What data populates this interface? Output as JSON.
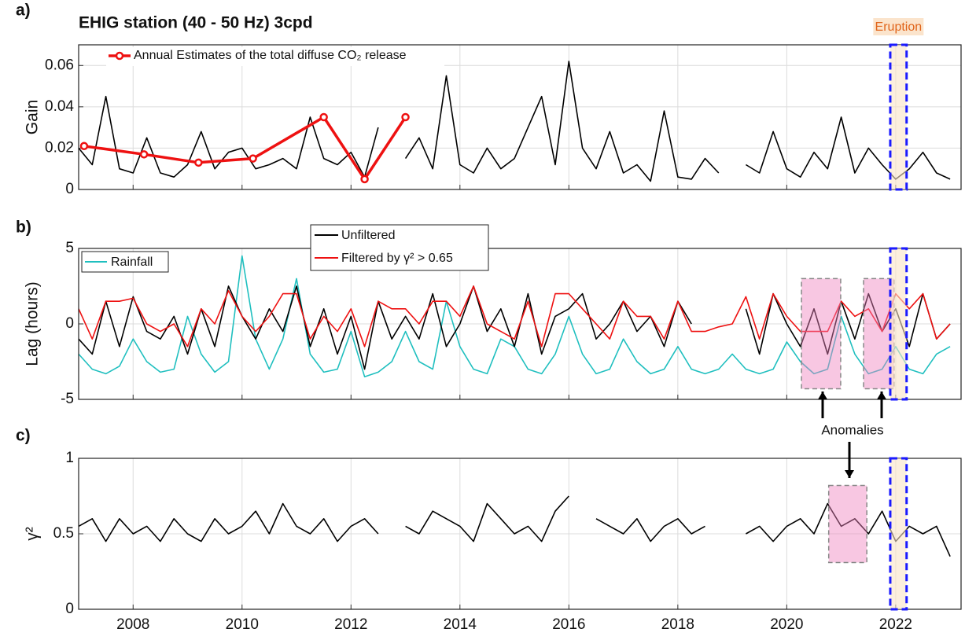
{
  "chart_data": [
    {
      "type": "line",
      "panel_label": "a)",
      "title": "EHIG station (40 - 50 Hz) 3cpd",
      "ylabel": "Gain",
      "xlim": [
        2007,
        2023.2
      ],
      "xticks": [
        2008,
        2010,
        2012,
        2014,
        2016,
        2018,
        2020,
        2022
      ],
      "xtick_labels": false,
      "ylim": [
        0,
        0.07
      ],
      "yticks": [
        0,
        0.02,
        0.04,
        0.06
      ],
      "grid": true,
      "x": [
        2007,
        2007.25,
        2007.5,
        2007.75,
        2008,
        2008.25,
        2008.5,
        2008.75,
        2009,
        2009.25,
        2009.5,
        2009.75,
        2010,
        2010.25,
        2010.5,
        2010.75,
        2011,
        2011.25,
        2011.5,
        2011.75,
        2012,
        2012.25,
        2012.5,
        2012.75,
        2013,
        2013.25,
        2013.5,
        2013.75,
        2014,
        2014.25,
        2014.5,
        2014.75,
        2015,
        2015.25,
        2015.5,
        2015.75,
        2016,
        2016.25,
        2016.5,
        2016.75,
        2017,
        2017.25,
        2017.5,
        2017.75,
        2018,
        2018.25,
        2018.5,
        2018.75,
        2019,
        2019.25,
        2019.5,
        2019.75,
        2020,
        2020.25,
        2020.5,
        2020.75,
        2021,
        2021.25,
        2021.5,
        2021.75,
        2022,
        2022.25,
        2022.5,
        2022.75,
        2023
      ],
      "series": [
        {
          "color": "#000000",
          "values": [
            0.02,
            0.012,
            0.045,
            0.01,
            0.008,
            0.025,
            0.008,
            0.006,
            0.012,
            0.028,
            0.01,
            0.018,
            0.02,
            0.01,
            0.012,
            0.015,
            0.01,
            0.035,
            0.015,
            0.012,
            0.018,
            0.006,
            0.03,
            null,
            0.015,
            0.025,
            0.01,
            0.055,
            0.012,
            0.008,
            0.02,
            0.01,
            0.015,
            0.03,
            0.045,
            0.012,
            0.062,
            0.02,
            0.01,
            0.028,
            0.008,
            0.012,
            0.004,
            0.038,
            0.006,
            0.005,
            0.015,
            0.008,
            null,
            0.012,
            0.008,
            0.028,
            0.01,
            0.006,
            0.018,
            0.01,
            0.035,
            0.008,
            0.02,
            0.012,
            0.005,
            0.01,
            0.018,
            0.008,
            0.005
          ]
        },
        {
          "name": "Annual Estimates of the total diffuse CO₂ release",
          "color": "#ee1111",
          "markers": true,
          "x": [
            2007.1,
            2008.2,
            2009.2,
            2010.2,
            2011.5,
            2012.25,
            2013.0
          ],
          "values": [
            0.021,
            0.017,
            0.013,
            0.015,
            0.035,
            0.005,
            0.035
          ]
        }
      ],
      "eruption": {
        "label": "Eruption",
        "start": 2021.9,
        "end": 2022.2
      }
    },
    {
      "type": "line",
      "panel_label": "b)",
      "ylabel": "Lag  (hours)",
      "xlim": [
        2007,
        2023.2
      ],
      "xticks": [
        2008,
        2010,
        2012,
        2014,
        2016,
        2018,
        2020,
        2022
      ],
      "xtick_labels": false,
      "ylim": [
        -5,
        5
      ],
      "yticks": [
        -5,
        0,
        5
      ],
      "grid": true,
      "x": [
        2007,
        2007.25,
        2007.5,
        2007.75,
        2008,
        2008.25,
        2008.5,
        2008.75,
        2009,
        2009.25,
        2009.5,
        2009.75,
        2010,
        2010.25,
        2010.5,
        2010.75,
        2011,
        2011.25,
        2011.5,
        2011.75,
        2012,
        2012.25,
        2012.5,
        2012.75,
        2013,
        2013.25,
        2013.5,
        2013.75,
        2014,
        2014.25,
        2014.5,
        2014.75,
        2015,
        2015.25,
        2015.5,
        2015.75,
        2016,
        2016.25,
        2016.5,
        2016.75,
        2017,
        2017.25,
        2017.5,
        2017.75,
        2018,
        2018.25,
        2018.5,
        2018.75,
        2019,
        2019.25,
        2019.5,
        2019.75,
        2020,
        2020.25,
        2020.5,
        2020.75,
        2021,
        2021.25,
        2021.5,
        2021.75,
        2022,
        2022.25,
        2022.5,
        2022.75,
        2023
      ],
      "series": [
        {
          "name": "Rainfall",
          "color": "#1fbfbf",
          "values": [
            -2,
            -3,
            -3.3,
            -2.8,
            -1,
            -2.5,
            -3.2,
            -3,
            0.5,
            -2,
            -3.2,
            -2.5,
            4.5,
            -1,
            -3,
            -1,
            3,
            -2,
            -3.2,
            -3,
            -0.5,
            -3.5,
            -3.2,
            -2.5,
            -0.5,
            -2.5,
            -3,
            1.5,
            -1.5,
            -3,
            -3.3,
            -1,
            -1.5,
            -3,
            -3.3,
            -2,
            0.5,
            -2,
            -3.3,
            -3,
            -1,
            -2.5,
            -3.3,
            -3,
            -1.5,
            -3,
            -3.3,
            -3,
            -2,
            -3,
            -3.3,
            -3,
            -1.2,
            -2.5,
            -3.3,
            -3,
            0.5,
            -2,
            -3.3,
            -3,
            -1.5,
            -3,
            -3.3,
            -2,
            -1.5
          ]
        },
        {
          "name": "Unfiltered",
          "color": "#000000",
          "values": [
            -1,
            -2,
            1.5,
            -1.5,
            1.8,
            -0.5,
            -1,
            0.5,
            -2,
            1,
            -1.5,
            2.5,
            0.5,
            -1,
            1,
            -0.5,
            2.5,
            -1.5,
            1,
            -2,
            0.5,
            -3,
            1.5,
            -1,
            0.5,
            -1,
            2,
            -1.5,
            0,
            2.5,
            -0.5,
            1,
            -1.5,
            2,
            -2,
            0.5,
            1,
            2,
            -1,
            0,
            1.5,
            -0.5,
            0.5,
            -1.5,
            1.5,
            0,
            null,
            null,
            null,
            1,
            -2,
            2,
            0,
            -1.5,
            1,
            -2,
            1.5,
            -1,
            2,
            -0.5,
            1,
            -1.5,
            2,
            -1,
            0
          ]
        },
        {
          "name": "Filtered by γ² > 0.65",
          "color": "#ee1111",
          "values": [
            1,
            -1,
            1.5,
            1.5,
            1.7,
            0,
            -0.5,
            0,
            -1.5,
            1,
            0,
            2.2,
            0.5,
            -0.5,
            0.5,
            2,
            2,
            -1,
            0.5,
            -0.5,
            1,
            -1.5,
            1.5,
            1,
            1,
            0,
            1.5,
            1.5,
            0.5,
            2.5,
            0,
            -0.5,
            -1,
            1.5,
            -1.5,
            2,
            2,
            1,
            0,
            -1,
            1.5,
            0.5,
            0.5,
            -1,
            1.5,
            -0.5,
            -0.5,
            -0.2,
            0,
            1.8,
            -1,
            2,
            0.5,
            -0.5,
            -0.5,
            -0.5,
            1.5,
            0.5,
            1,
            -0.5,
            2,
            1,
            2,
            -1,
            0
          ]
        }
      ],
      "highlights": [
        {
          "start": 2020.27,
          "end": 2020.99,
          "ymin": -4.3,
          "ymax": 3
        },
        {
          "start": 2021.41,
          "end": 2021.97,
          "ymin": -4.3,
          "ymax": 3
        }
      ],
      "annotation": "Anomalies"
    },
    {
      "type": "line",
      "panel_label": "c)",
      "ylabel": "γ²",
      "xlim": [
        2007,
        2023.2
      ],
      "xticks": [
        2008,
        2010,
        2012,
        2014,
        2016,
        2018,
        2020,
        2022
      ],
      "xtick_labels": true,
      "ylim": [
        0,
        1
      ],
      "yticks": [
        0,
        0.5,
        1
      ],
      "grid": true,
      "x": [
        2007,
        2007.25,
        2007.5,
        2007.75,
        2008,
        2008.25,
        2008.5,
        2008.75,
        2009,
        2009.25,
        2009.5,
        2009.75,
        2010,
        2010.25,
        2010.5,
        2010.75,
        2011,
        2011.25,
        2011.5,
        2011.75,
        2012,
        2012.25,
        2012.5,
        2012.75,
        2013,
        2013.25,
        2013.5,
        2013.75,
        2014,
        2014.25,
        2014.5,
        2014.75,
        2015,
        2015.25,
        2015.5,
        2015.75,
        2016,
        2016.25,
        2016.5,
        2016.75,
        2017,
        2017.25,
        2017.5,
        2017.75,
        2018,
        2018.25,
        2018.5,
        2018.75,
        2019,
        2019.25,
        2019.5,
        2019.75,
        2020,
        2020.25,
        2020.5,
        2020.75,
        2021,
        2021.25,
        2021.5,
        2021.75,
        2022,
        2022.25,
        2022.5,
        2022.75,
        2023
      ],
      "series": [
        {
          "color": "#000000",
          "values": [
            0.55,
            0.6,
            0.45,
            0.6,
            0.5,
            0.55,
            0.45,
            0.6,
            0.5,
            0.45,
            0.6,
            0.5,
            0.55,
            0.65,
            0.5,
            0.7,
            0.55,
            0.5,
            0.6,
            0.45,
            0.55,
            0.6,
            0.5,
            null,
            0.55,
            0.5,
            0.65,
            0.6,
            0.55,
            0.45,
            0.7,
            0.6,
            0.5,
            0.55,
            0.45,
            0.65,
            0.75,
            null,
            0.6,
            0.55,
            0.5,
            0.6,
            0.45,
            0.55,
            0.6,
            0.5,
            0.55,
            null,
            null,
            0.5,
            0.55,
            0.45,
            0.55,
            0.6,
            0.5,
            0.7,
            0.55,
            0.6,
            0.5,
            0.65,
            0.45,
            0.55,
            0.5,
            0.55,
            0.35
          ]
        }
      ],
      "highlights": [
        {
          "start": 2020.77,
          "end": 2021.47,
          "ymin": 0.31,
          "ymax": 0.82
        }
      ]
    }
  ]
}
